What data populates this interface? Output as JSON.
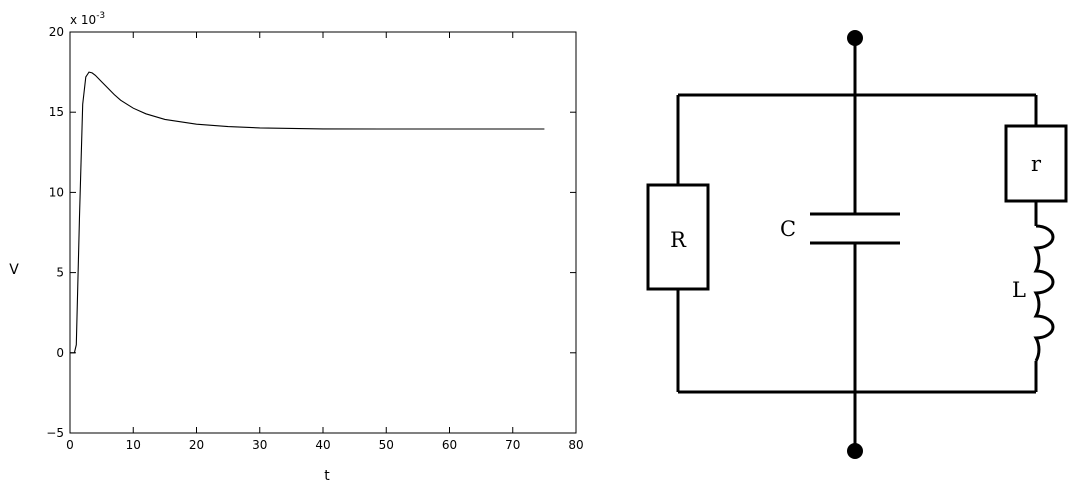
{
  "chart_data": {
    "type": "line",
    "title": "",
    "xlabel": "t",
    "ylabel": "V",
    "y_multiplier": "x 10",
    "y_exponent": "-3",
    "xlim": [
      0,
      80
    ],
    "ylim": [
      -5,
      20
    ],
    "x_ticks": [
      0,
      10,
      20,
      30,
      40,
      50,
      60,
      70,
      80
    ],
    "y_ticks": [
      -5,
      0,
      5,
      10,
      15,
      20
    ],
    "grid": false,
    "series": [
      {
        "x": [
          0,
          0.7,
          1.0,
          1.5,
          2.0,
          2.5,
          3.0,
          3.5,
          4,
          5,
          6,
          7,
          8,
          10,
          12,
          15,
          20,
          25,
          30,
          40,
          50,
          60,
          75
        ],
        "y": [
          0,
          0,
          0.5,
          8.5,
          15.5,
          17.2,
          17.5,
          17.45,
          17.3,
          16.9,
          16.5,
          16.1,
          15.75,
          15.25,
          14.9,
          14.55,
          14.25,
          14.1,
          14.02,
          13.96,
          13.95,
          13.95,
          13.95
        ],
        "color": "#000000"
      }
    ]
  },
  "circuit": {
    "components": {
      "R": "R",
      "C": "C",
      "r": "r",
      "L": "L"
    }
  }
}
